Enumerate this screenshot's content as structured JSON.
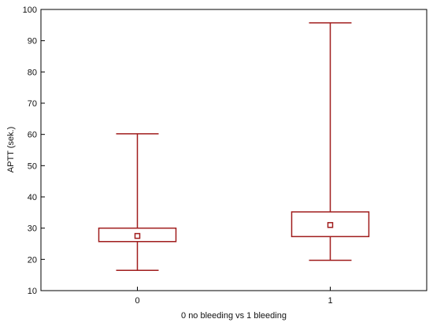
{
  "chart_data": {
    "type": "box",
    "xlabel": "0 no bleeding vs 1 bleeding",
    "ylabel": "APTT (sek.)",
    "ylim": [
      10,
      100
    ],
    "yticks": [
      10,
      20,
      30,
      40,
      50,
      60,
      70,
      80,
      90,
      100
    ],
    "categories": [
      "0",
      "1"
    ],
    "series": [
      {
        "category": "0",
        "min": 16.5,
        "q1": 25.7,
        "median": 27.5,
        "q3": 30.0,
        "max": 60.2
      },
      {
        "category": "1",
        "min": 19.7,
        "q1": 27.3,
        "median": 31.0,
        "q3": 35.2,
        "max": 95.7
      }
    ],
    "grid": false,
    "box_color": "#a01c1c"
  }
}
